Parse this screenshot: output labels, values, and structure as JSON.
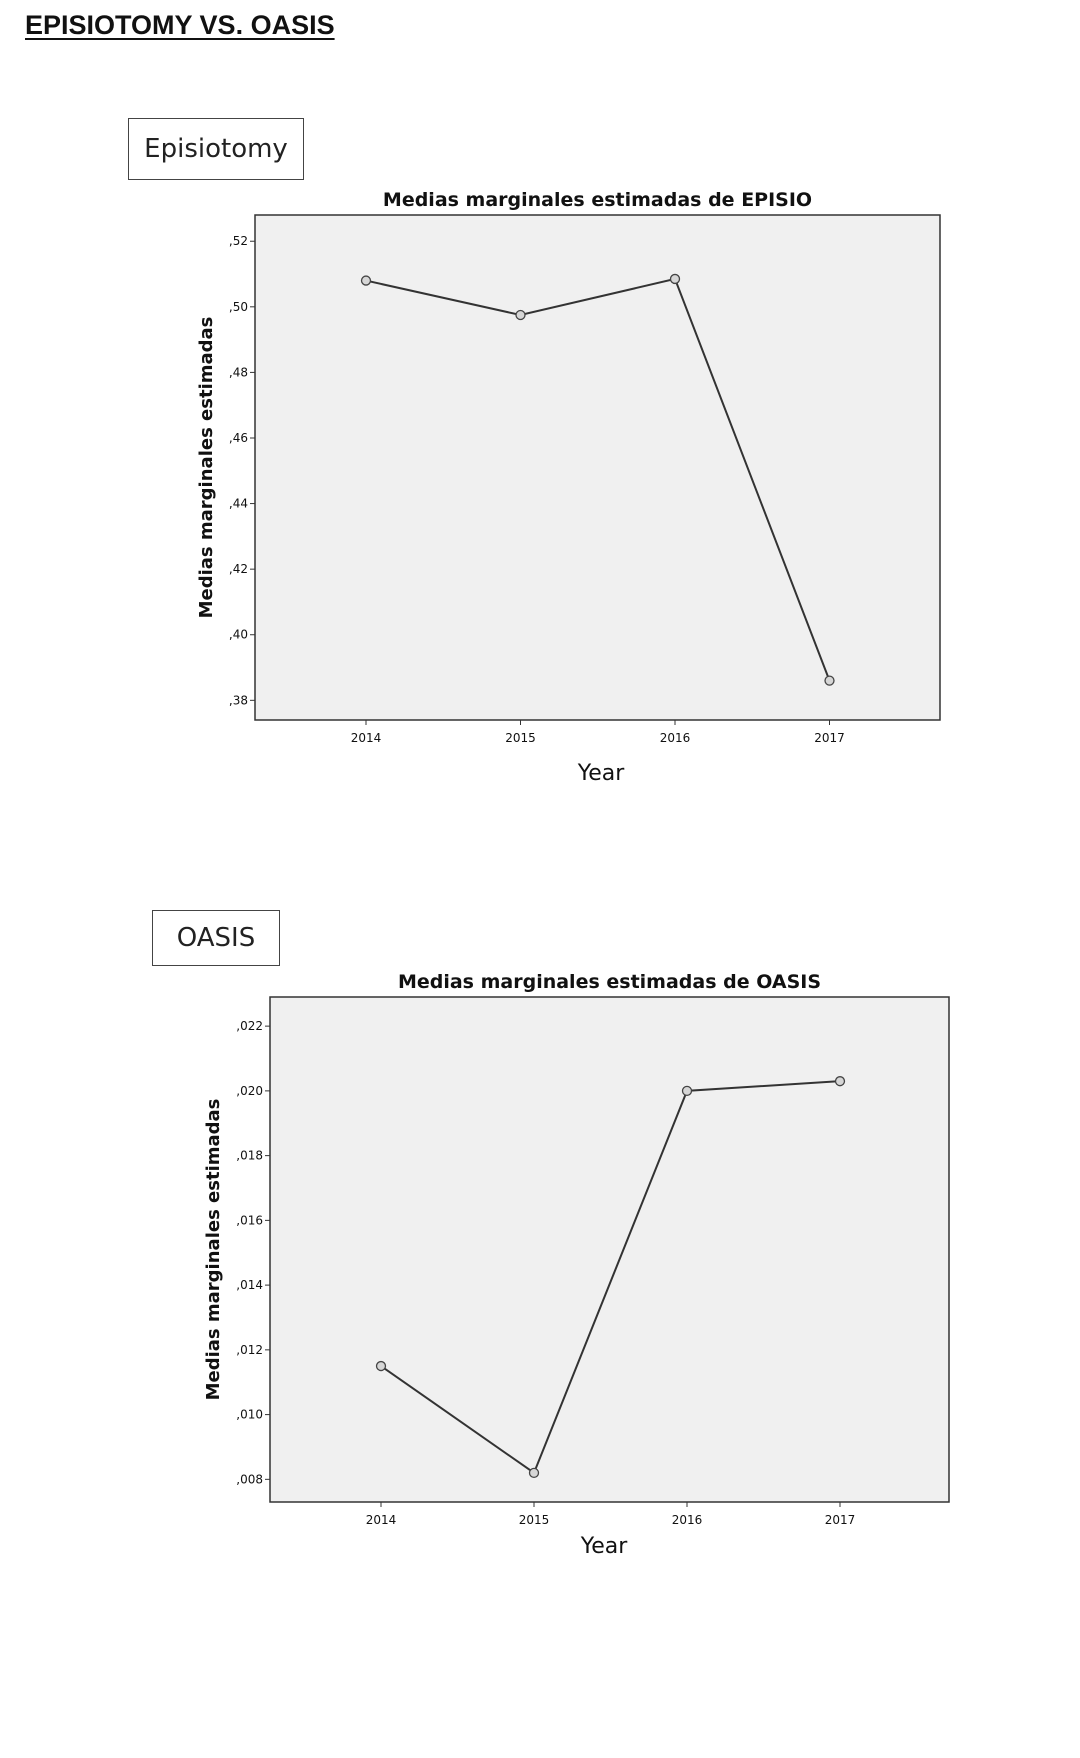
{
  "page": {
    "title": "EPISIOTOMY VS. OASIS"
  },
  "chart_data": [
    {
      "type": "line",
      "box_label": "Episiotomy",
      "title": "Medias marginales estimadas de EPISIO",
      "xlabel": "Year",
      "ylabel": "Medias marginales estimadas",
      "categories": [
        "2014",
        "2015",
        "2016",
        "2017"
      ],
      "values": [
        0.508,
        0.4975,
        0.5085,
        0.386
      ],
      "ylim": [
        0.374,
        0.528
      ],
      "yticks": [
        0.38,
        0.4,
        0.42,
        0.44,
        0.46,
        0.48,
        0.5,
        0.52
      ],
      "ytick_labels": [
        ",38",
        ",40",
        ",42",
        ",44",
        ",46",
        ",48",
        ",50",
        ",52"
      ],
      "grid": false,
      "legend": "none",
      "colors": {
        "line": "#333333",
        "plot_bg": "#f0f0f0",
        "marker_fill": "#d6d6d6"
      }
    },
    {
      "type": "line",
      "box_label": "OASIS",
      "title": "Medias marginales estimadas de OASIS",
      "xlabel": "Year",
      "ylabel": "Medias marginales estimadas",
      "categories": [
        "2014",
        "2015",
        "2016",
        "2017"
      ],
      "values": [
        0.0115,
        0.0082,
        0.02,
        0.0203
      ],
      "ylim": [
        0.0073,
        0.0229
      ],
      "yticks": [
        0.008,
        0.01,
        0.012,
        0.014,
        0.016,
        0.018,
        0.02,
        0.022
      ],
      "ytick_labels": [
        ",008",
        ",010",
        ",012",
        ",014",
        ",016",
        ",018",
        ",020",
        ",022"
      ],
      "grid": false,
      "legend": "none",
      "colors": {
        "line": "#333333",
        "plot_bg": "#f0f0f0",
        "marker_fill": "#d6d6d6"
      }
    }
  ]
}
